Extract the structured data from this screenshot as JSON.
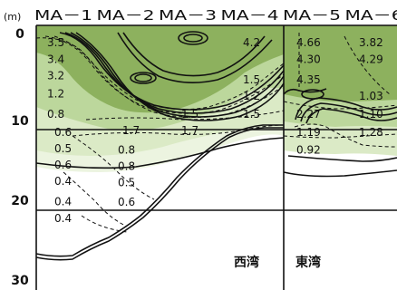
{
  "chart_data": {
    "type": "contour-section",
    "depth_unit": "(m)",
    "depth_ticks": [
      "0",
      "10",
      "20",
      "30"
    ],
    "depth_range": [
      0,
      30
    ],
    "stations": [
      "MA－1",
      "MA－2",
      "MA－3",
      "MA－4",
      "MA－5",
      "MA－6"
    ],
    "basins": [
      "西湾",
      "東湾"
    ],
    "values": [
      {
        "text": "3.5",
        "station": 0,
        "depth": 1.2,
        "sub": "upper"
      },
      {
        "text": "3.4",
        "station": 0,
        "depth": 3.3,
        "sub": "upper"
      },
      {
        "text": "3.2",
        "station": 0,
        "depth": 5.3,
        "sub": "upper"
      },
      {
        "text": "1.2",
        "station": 0,
        "depth": 7.5,
        "sub": "upper"
      },
      {
        "text": "0.8",
        "station": 0,
        "depth": 10.0,
        "sub": "upper"
      },
      {
        "text": "0.6",
        "station": 0,
        "depth": 12.2,
        "sub": "lower"
      },
      {
        "text": "0.5",
        "station": 0,
        "depth": 14.2,
        "sub": "lower"
      },
      {
        "text": "0.6",
        "station": 0,
        "depth": 16.2,
        "sub": "lower"
      },
      {
        "text": "0.4",
        "station": 0,
        "depth": 18.2,
        "sub": "lower"
      },
      {
        "text": "0.4",
        "station": 0,
        "depth": 20.7,
        "sub": "lower"
      },
      {
        "text": "0.4",
        "station": 0,
        "depth": 22.8,
        "sub": "lower"
      },
      {
        "text": "0.8",
        "station": 1,
        "depth": 14.4,
        "sub": "lower"
      },
      {
        "text": "0.8",
        "station": 1,
        "depth": 16.4,
        "sub": "lower"
      },
      {
        "text": "0.5",
        "station": 1,
        "depth": 18.4,
        "sub": "lower"
      },
      {
        "text": "0.6",
        "station": 1,
        "depth": 20.8,
        "sub": "lower"
      },
      {
        "text": "1.7",
        "station": 1,
        "depth": 12.0,
        "sub": "mid"
      },
      {
        "text": "1.7",
        "station": 2,
        "depth": 12.0,
        "sub": "mid"
      },
      {
        "text": "1.5",
        "station": 2,
        "depth": 10.0,
        "sub": "mid"
      },
      {
        "text": "1.5",
        "station": 3,
        "depth": 10.0,
        "sub": "mid"
      },
      {
        "text": "1.2",
        "station": 3,
        "depth": 7.8,
        "sub": "mid"
      },
      {
        "text": "1.5",
        "station": 3,
        "depth": 5.8,
        "sub": "mid"
      },
      {
        "text": "4.2",
        "station": 3,
        "depth": 1.2,
        "sub": "mid"
      },
      {
        "text": "4.66",
        "station": 4,
        "depth": 1.2,
        "sub": "upper"
      },
      {
        "text": "4.30",
        "station": 4,
        "depth": 3.3,
        "sub": "upper"
      },
      {
        "text": "4.35",
        "station": 4,
        "depth": 5.8,
        "sub": "upper"
      },
      {
        "text": "2.27",
        "station": 4,
        "depth": 10.0,
        "sub": "upper"
      },
      {
        "text": "1.19",
        "station": 4,
        "depth": 12.2,
        "sub": "upper"
      },
      {
        "text": "0.92",
        "station": 4,
        "depth": 14.4,
        "sub": "upper"
      },
      {
        "text": "3.82",
        "station": 5,
        "depth": 1.2,
        "sub": "upper"
      },
      {
        "text": "4.29",
        "station": 5,
        "depth": 3.3,
        "sub": "upper"
      },
      {
        "text": "1.03",
        "station": 5,
        "depth": 7.8,
        "sub": "upper"
      },
      {
        "text": "1.10",
        "station": 5,
        "depth": 10.0,
        "sub": "upper"
      },
      {
        "text": "1.28",
        "station": 5,
        "depth": 12.2,
        "sub": "upper"
      }
    ],
    "colors": {
      "dark_green": "#8db15e",
      "mid_green": "#bcd79c",
      "light_green": "#dbeac6",
      "faint_green": "#ecf4e0",
      "line": "#111111"
    }
  }
}
